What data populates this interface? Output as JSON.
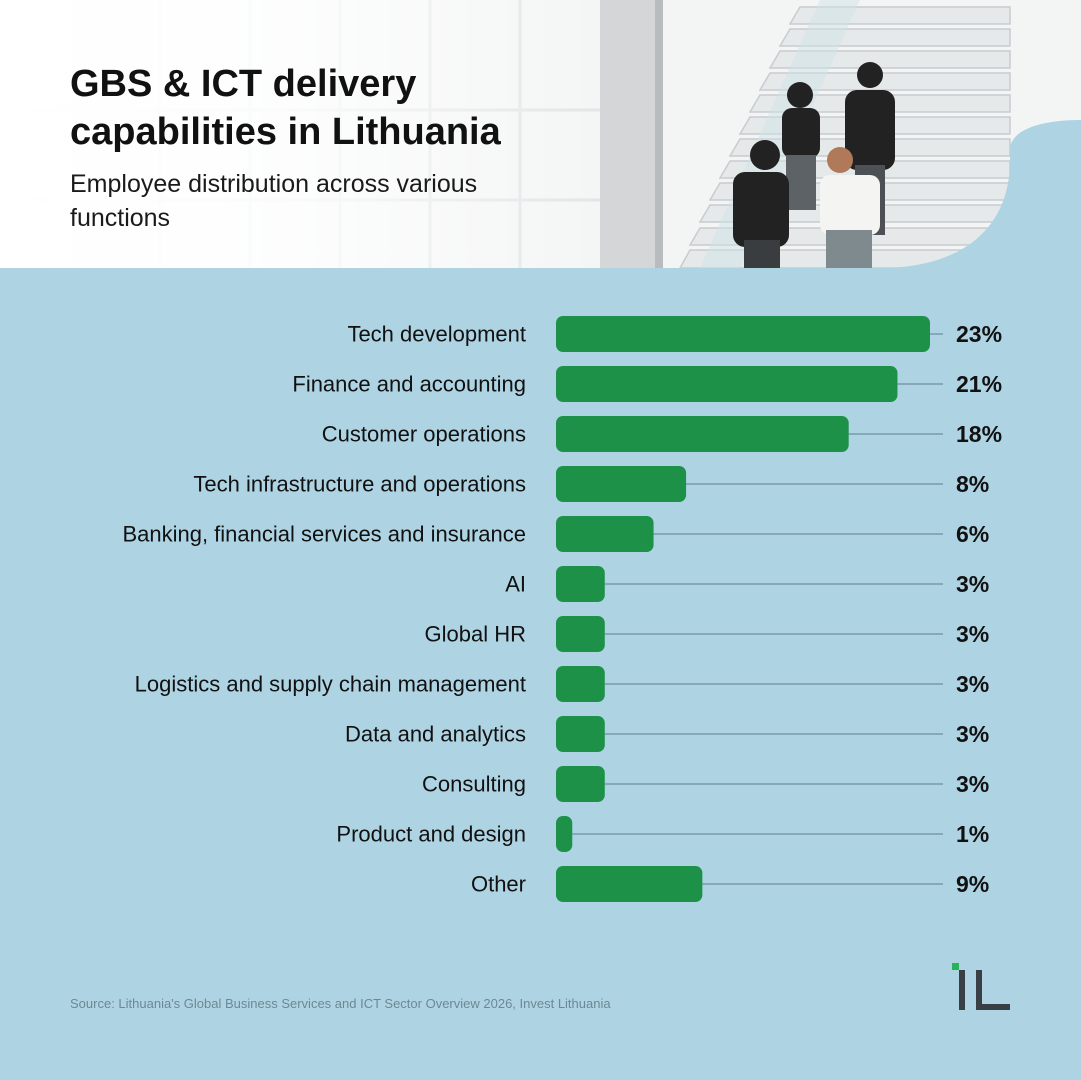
{
  "header": {
    "title": "GBS & ICT delivery capabilities in Lithuania",
    "subtitle": "Employee distribution across various functions",
    "photo_icon": "people-on-staircase"
  },
  "chart_data": {
    "type": "bar",
    "orientation": "horizontal",
    "categories": [
      "Tech development",
      "Finance and accounting",
      "Customer operations",
      "Tech infrastructure and operations",
      "Banking, financial services and insurance",
      "AI",
      "Global HR",
      "Logistics and supply chain management",
      "Data and analytics",
      "Consulting",
      "Product and design",
      "Other"
    ],
    "values": [
      23,
      21,
      18,
      8,
      6,
      3,
      3,
      3,
      3,
      3,
      1,
      9
    ],
    "value_labels": [
      "23%",
      "21%",
      "18%",
      "8%",
      "6%",
      "3%",
      "3%",
      "3%",
      "3%",
      "3%",
      "1%",
      "9%"
    ],
    "unit": "%",
    "xlim": [
      0,
      23
    ],
    "grid": false,
    "legend": "none"
  },
  "footer": {
    "source": "Source: Lithuania's Global Business Services and ICT Sector Overview 2026, Invest Lithuania",
    "logo": "iL"
  },
  "colors": {
    "background": "#aed4e4",
    "bar": "#1e9148",
    "leader_line": "#5d7d8c",
    "text": "#111111",
    "logo_accent": "#2bb15a",
    "logo_dark": "#3a3f45"
  }
}
